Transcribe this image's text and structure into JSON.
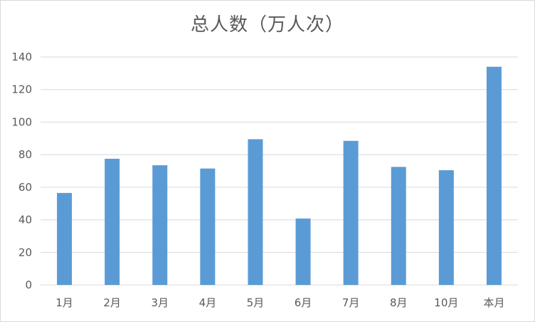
{
  "chart_data": {
    "type": "bar",
    "title": "总人数（万人次）",
    "xlabel": "",
    "ylabel": "",
    "categories": [
      "1月",
      "2月",
      "3月",
      "4月",
      "5月",
      "6月",
      "7月",
      "8月",
      "10月",
      "本月"
    ],
    "values": [
      56.5,
      77.5,
      73.5,
      71.5,
      89.5,
      40.8,
      88.5,
      72.5,
      70.5,
      134
    ],
    "ylim": [
      0,
      140
    ],
    "yticks": [
      "0",
      "20",
      "40",
      "60",
      "80",
      "100",
      "120",
      "140"
    ],
    "grid": true,
    "legend": "none",
    "colors": {
      "bar": "#5b9bd5",
      "grid": "#d9d9d9",
      "text": "#595959"
    }
  }
}
